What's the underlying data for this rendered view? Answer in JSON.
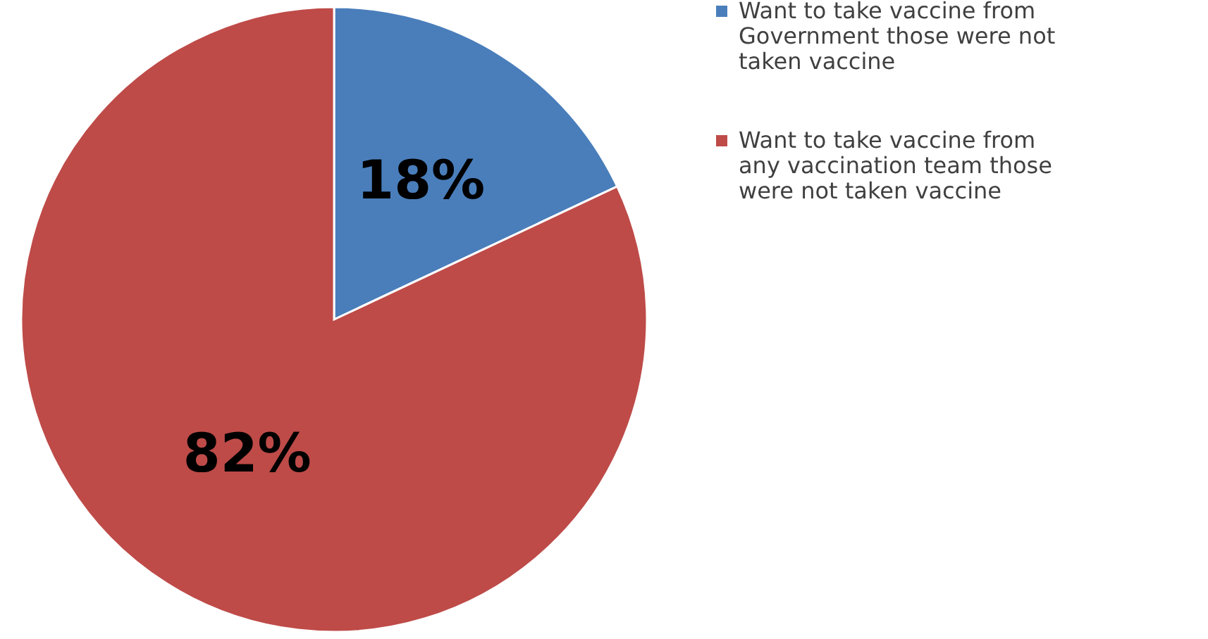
{
  "chart_data": {
    "type": "pie",
    "categories": [
      "Want to take vaccine from Government those were not taken vaccine",
      "Want to take vaccine from any vaccination team those were not taken vaccine"
    ],
    "values": [
      18,
      82
    ],
    "colors": [
      "#4a7ebb",
      "#be4b48"
    ],
    "value_labels": [
      "18%",
      "82%"
    ],
    "legend": "right"
  }
}
